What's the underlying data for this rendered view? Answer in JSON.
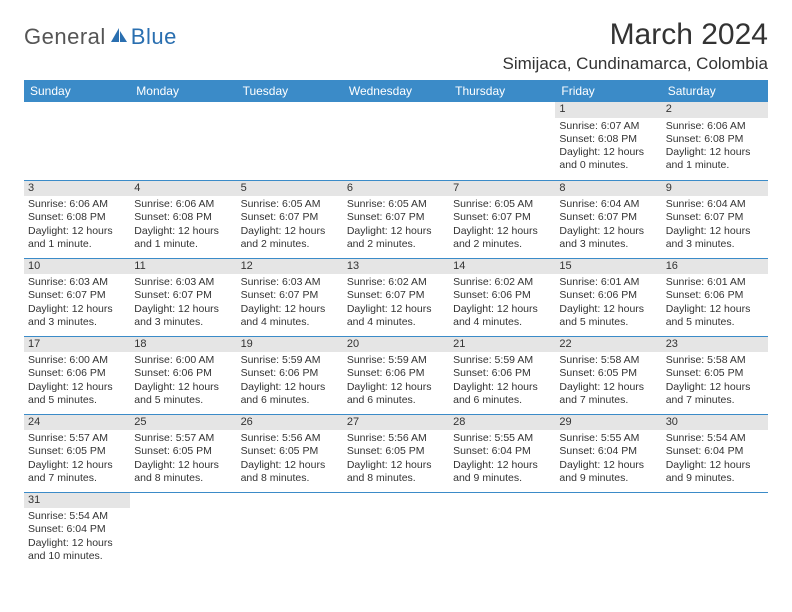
{
  "logo": {
    "text1": "General",
    "text2": "Blue"
  },
  "title": "March 2024",
  "location": "Simijaca, Cundinamarca, Colombia",
  "colors": {
    "header_bg": "#3b8bc8",
    "header_text": "#ffffff",
    "daynum_bg": "#e5e5e5",
    "border": "#3b8bc8",
    "logo_blue": "#2a6fb0",
    "logo_gray": "#555555",
    "body_text": "#333333",
    "background": "#ffffff"
  },
  "weekdays": [
    "Sunday",
    "Monday",
    "Tuesday",
    "Wednesday",
    "Thursday",
    "Friday",
    "Saturday"
  ],
  "weeks": [
    [
      null,
      null,
      null,
      null,
      null,
      {
        "d": "1",
        "sr": "Sunrise: 6:07 AM",
        "ss": "Sunset: 6:08 PM",
        "dl1": "Daylight: 12 hours",
        "dl2": "and 0 minutes."
      },
      {
        "d": "2",
        "sr": "Sunrise: 6:06 AM",
        "ss": "Sunset: 6:08 PM",
        "dl1": "Daylight: 12 hours",
        "dl2": "and 1 minute."
      }
    ],
    [
      {
        "d": "3",
        "sr": "Sunrise: 6:06 AM",
        "ss": "Sunset: 6:08 PM",
        "dl1": "Daylight: 12 hours",
        "dl2": "and 1 minute."
      },
      {
        "d": "4",
        "sr": "Sunrise: 6:06 AM",
        "ss": "Sunset: 6:08 PM",
        "dl1": "Daylight: 12 hours",
        "dl2": "and 1 minute."
      },
      {
        "d": "5",
        "sr": "Sunrise: 6:05 AM",
        "ss": "Sunset: 6:07 PM",
        "dl1": "Daylight: 12 hours",
        "dl2": "and 2 minutes."
      },
      {
        "d": "6",
        "sr": "Sunrise: 6:05 AM",
        "ss": "Sunset: 6:07 PM",
        "dl1": "Daylight: 12 hours",
        "dl2": "and 2 minutes."
      },
      {
        "d": "7",
        "sr": "Sunrise: 6:05 AM",
        "ss": "Sunset: 6:07 PM",
        "dl1": "Daylight: 12 hours",
        "dl2": "and 2 minutes."
      },
      {
        "d": "8",
        "sr": "Sunrise: 6:04 AM",
        "ss": "Sunset: 6:07 PM",
        "dl1": "Daylight: 12 hours",
        "dl2": "and 3 minutes."
      },
      {
        "d": "9",
        "sr": "Sunrise: 6:04 AM",
        "ss": "Sunset: 6:07 PM",
        "dl1": "Daylight: 12 hours",
        "dl2": "and 3 minutes."
      }
    ],
    [
      {
        "d": "10",
        "sr": "Sunrise: 6:03 AM",
        "ss": "Sunset: 6:07 PM",
        "dl1": "Daylight: 12 hours",
        "dl2": "and 3 minutes."
      },
      {
        "d": "11",
        "sr": "Sunrise: 6:03 AM",
        "ss": "Sunset: 6:07 PM",
        "dl1": "Daylight: 12 hours",
        "dl2": "and 3 minutes."
      },
      {
        "d": "12",
        "sr": "Sunrise: 6:03 AM",
        "ss": "Sunset: 6:07 PM",
        "dl1": "Daylight: 12 hours",
        "dl2": "and 4 minutes."
      },
      {
        "d": "13",
        "sr": "Sunrise: 6:02 AM",
        "ss": "Sunset: 6:07 PM",
        "dl1": "Daylight: 12 hours",
        "dl2": "and 4 minutes."
      },
      {
        "d": "14",
        "sr": "Sunrise: 6:02 AM",
        "ss": "Sunset: 6:06 PM",
        "dl1": "Daylight: 12 hours",
        "dl2": "and 4 minutes."
      },
      {
        "d": "15",
        "sr": "Sunrise: 6:01 AM",
        "ss": "Sunset: 6:06 PM",
        "dl1": "Daylight: 12 hours",
        "dl2": "and 5 minutes."
      },
      {
        "d": "16",
        "sr": "Sunrise: 6:01 AM",
        "ss": "Sunset: 6:06 PM",
        "dl1": "Daylight: 12 hours",
        "dl2": "and 5 minutes."
      }
    ],
    [
      {
        "d": "17",
        "sr": "Sunrise: 6:00 AM",
        "ss": "Sunset: 6:06 PM",
        "dl1": "Daylight: 12 hours",
        "dl2": "and 5 minutes."
      },
      {
        "d": "18",
        "sr": "Sunrise: 6:00 AM",
        "ss": "Sunset: 6:06 PM",
        "dl1": "Daylight: 12 hours",
        "dl2": "and 5 minutes."
      },
      {
        "d": "19",
        "sr": "Sunrise: 5:59 AM",
        "ss": "Sunset: 6:06 PM",
        "dl1": "Daylight: 12 hours",
        "dl2": "and 6 minutes."
      },
      {
        "d": "20",
        "sr": "Sunrise: 5:59 AM",
        "ss": "Sunset: 6:06 PM",
        "dl1": "Daylight: 12 hours",
        "dl2": "and 6 minutes."
      },
      {
        "d": "21",
        "sr": "Sunrise: 5:59 AM",
        "ss": "Sunset: 6:06 PM",
        "dl1": "Daylight: 12 hours",
        "dl2": "and 6 minutes."
      },
      {
        "d": "22",
        "sr": "Sunrise: 5:58 AM",
        "ss": "Sunset: 6:05 PM",
        "dl1": "Daylight: 12 hours",
        "dl2": "and 7 minutes."
      },
      {
        "d": "23",
        "sr": "Sunrise: 5:58 AM",
        "ss": "Sunset: 6:05 PM",
        "dl1": "Daylight: 12 hours",
        "dl2": "and 7 minutes."
      }
    ],
    [
      {
        "d": "24",
        "sr": "Sunrise: 5:57 AM",
        "ss": "Sunset: 6:05 PM",
        "dl1": "Daylight: 12 hours",
        "dl2": "and 7 minutes."
      },
      {
        "d": "25",
        "sr": "Sunrise: 5:57 AM",
        "ss": "Sunset: 6:05 PM",
        "dl1": "Daylight: 12 hours",
        "dl2": "and 8 minutes."
      },
      {
        "d": "26",
        "sr": "Sunrise: 5:56 AM",
        "ss": "Sunset: 6:05 PM",
        "dl1": "Daylight: 12 hours",
        "dl2": "and 8 minutes."
      },
      {
        "d": "27",
        "sr": "Sunrise: 5:56 AM",
        "ss": "Sunset: 6:05 PM",
        "dl1": "Daylight: 12 hours",
        "dl2": "and 8 minutes."
      },
      {
        "d": "28",
        "sr": "Sunrise: 5:55 AM",
        "ss": "Sunset: 6:04 PM",
        "dl1": "Daylight: 12 hours",
        "dl2": "and 9 minutes."
      },
      {
        "d": "29",
        "sr": "Sunrise: 5:55 AM",
        "ss": "Sunset: 6:04 PM",
        "dl1": "Daylight: 12 hours",
        "dl2": "and 9 minutes."
      },
      {
        "d": "30",
        "sr": "Sunrise: 5:54 AM",
        "ss": "Sunset: 6:04 PM",
        "dl1": "Daylight: 12 hours",
        "dl2": "and 9 minutes."
      }
    ],
    [
      {
        "d": "31",
        "sr": "Sunrise: 5:54 AM",
        "ss": "Sunset: 6:04 PM",
        "dl1": "Daylight: 12 hours",
        "dl2": "and 10 minutes."
      },
      null,
      null,
      null,
      null,
      null,
      null
    ]
  ]
}
